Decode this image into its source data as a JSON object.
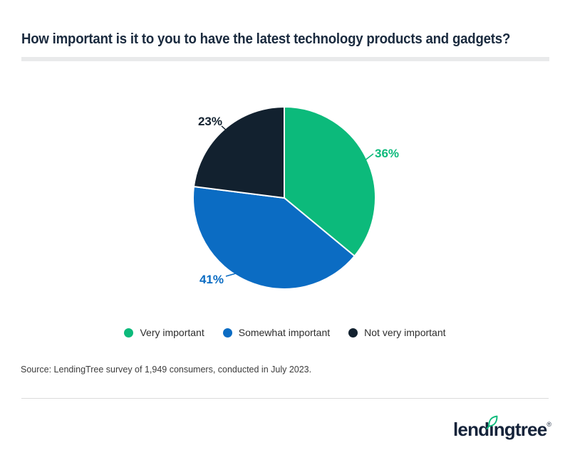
{
  "header": {
    "title": "How important is it to you to have the latest technology products and gadgets?"
  },
  "chart_data": {
    "type": "pie",
    "title": "How important is it to you to have the latest technology products and gadgets?",
    "slices": [
      {
        "label": "Very important",
        "value": 36,
        "display": "36%",
        "color": "#0CBA7B"
      },
      {
        "label": "Somewhat important",
        "value": 41,
        "display": "41%",
        "color": "#0B6CC3"
      },
      {
        "label": "Not very important",
        "value": 23,
        "display": "23%",
        "color": "#12212F"
      }
    ],
    "start_angle_deg": 0,
    "direction": "clockwise",
    "legend_position": "bottom",
    "source": "Source: LendingTree survey of 1,949 consumers, conducted in July 2023."
  },
  "colors": {
    "green": "#0CBA7B",
    "blue": "#0B6CC3",
    "navy": "#12212F",
    "title_navy": "#1A2A3E",
    "underline_gray": "#E9EAEB",
    "divider_gray": "#DBDBDB"
  },
  "footer": {
    "brand_name": "lendingtree",
    "logo": {
      "pre": "lend",
      "i": "ı",
      "post": "ngtree",
      "registered": "®"
    }
  }
}
